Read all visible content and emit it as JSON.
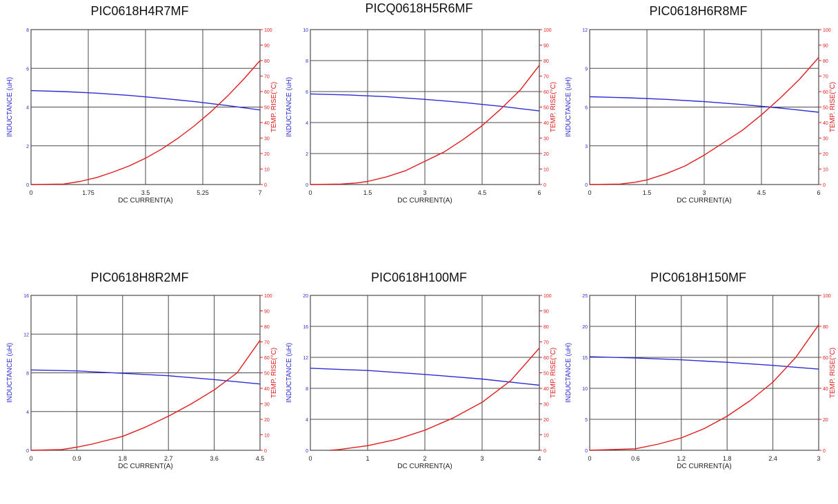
{
  "colors": {
    "inductance": "#2b2bd6",
    "temp_rise": "#e01b1b",
    "grid": "#4a4a4a",
    "tick_text": "#222222"
  },
  "chart_data": [
    {
      "type": "line",
      "title": "PIC0618H4R7MF",
      "xlabel": "DC CURRENT(A)",
      "ylabel_left": "INDUCTANCE (uH)",
      "ylabel_right": "TEMP. RISE(°C)",
      "x_ticks": [
        "0",
        "1.75",
        "3.5",
        "5.25",
        "7"
      ],
      "xlim": [
        0,
        7
      ],
      "left_ticks": [
        "0",
        "2",
        "4",
        "6",
        "8"
      ],
      "ylim_left": [
        0,
        8
      ],
      "right_ticks": [
        "0",
        "10",
        "20",
        "30",
        "40",
        "50",
        "60",
        "70",
        "80",
        "90",
        "100"
      ],
      "ylim_right": [
        0,
        100
      ],
      "grid": true,
      "series": [
        {
          "name": "INDUCTANCE (uH)",
          "axis": "left",
          "x": [
            0,
            1,
            2,
            3,
            4,
            5,
            6,
            7
          ],
          "y": [
            4.85,
            4.8,
            4.72,
            4.6,
            4.45,
            4.28,
            4.08,
            3.85
          ]
        },
        {
          "name": "TEMP. RISE(°C)",
          "axis": "right",
          "x": [
            0,
            1,
            1.5,
            2,
            2.5,
            3,
            3.5,
            4,
            4.5,
            5,
            5.5,
            6,
            6.5,
            7
          ],
          "y": [
            0,
            0.3,
            2,
            4.5,
            8,
            12,
            17,
            23,
            30,
            38,
            47,
            57,
            68,
            80
          ]
        }
      ]
    },
    {
      "type": "line",
      "title": "PICQ0618H5R6MF",
      "xlabel": "DC CURRENT(A)",
      "ylabel_left": "INDUCTANCE (uH)",
      "ylabel_right": "TEMP. RISE(°C)",
      "x_ticks": [
        "0",
        "1.5",
        "3",
        "4.5",
        "6"
      ],
      "xlim": [
        0,
        6
      ],
      "left_ticks": [
        "0",
        "2",
        "4",
        "6",
        "8",
        "10"
      ],
      "ylim_left": [
        0,
        10
      ],
      "right_ticks": [
        "0",
        "10",
        "20",
        "30",
        "40",
        "50",
        "60",
        "70",
        "80",
        "90",
        "100"
      ],
      "ylim_right": [
        0,
        100
      ],
      "grid": true,
      "series": [
        {
          "name": "INDUCTANCE (uH)",
          "axis": "left",
          "x": [
            0,
            1,
            2,
            3,
            4,
            5,
            6
          ],
          "y": [
            5.85,
            5.78,
            5.67,
            5.5,
            5.3,
            5.05,
            4.75
          ]
        },
        {
          "name": "TEMP. RISE(°C)",
          "axis": "right",
          "x": [
            0,
            0.8,
            1.2,
            1.5,
            2,
            2.5,
            3,
            3.5,
            4,
            4.5,
            5,
            5.5,
            6
          ],
          "y": [
            0,
            0.3,
            1,
            2,
            5,
            9,
            15,
            21,
            29,
            38,
            49,
            61,
            77
          ]
        }
      ]
    },
    {
      "type": "line",
      "title": "PIC0618H6R8MF",
      "xlabel": "DC CURRENT(A)",
      "ylabel_left": "INDUCTANCE (uH)",
      "ylabel_right": "TEMP. RISE(°C)",
      "x_ticks": [
        "0",
        "1.5",
        "3",
        "4.5",
        "6"
      ],
      "xlim": [
        0,
        6
      ],
      "left_ticks": [
        "0",
        "3",
        "6",
        "9",
        "12"
      ],
      "ylim_left": [
        0,
        12
      ],
      "right_ticks": [
        "0",
        "10",
        "20",
        "30",
        "40",
        "50",
        "60",
        "70",
        "80",
        "90",
        "100"
      ],
      "ylim_right": [
        0,
        100
      ],
      "grid": true,
      "series": [
        {
          "name": "INDUCTANCE (uH)",
          "axis": "left",
          "x": [
            0,
            1,
            2,
            3,
            4,
            5,
            6
          ],
          "y": [
            6.8,
            6.72,
            6.6,
            6.42,
            6.2,
            5.92,
            5.6
          ]
        },
        {
          "name": "TEMP. RISE(°C)",
          "axis": "right",
          "x": [
            0,
            0.8,
            1.2,
            1.5,
            2,
            2.5,
            3,
            3.5,
            4,
            4.5,
            5,
            5.5,
            6
          ],
          "y": [
            0,
            0.3,
            1.5,
            3,
            7,
            12,
            19,
            27,
            35,
            45,
            56,
            68,
            82
          ]
        }
      ]
    },
    {
      "type": "line",
      "title": "PIC0618H8R2MF",
      "xlabel": "DC CURRENT(A)",
      "ylabel_left": "INDUCTANCE (uH)",
      "ylabel_right": "TEMP. RISE(°C)",
      "x_ticks": [
        "0",
        "0.9",
        "1.8",
        "2.7",
        "3.6",
        "4.5"
      ],
      "xlim": [
        0,
        4.5
      ],
      "left_ticks": [
        "0",
        "4",
        "8",
        "12",
        "16"
      ],
      "ylim_left": [
        0,
        16
      ],
      "right_ticks": [
        "0",
        "10",
        "20",
        "30",
        "40",
        "50",
        "60",
        "70",
        "80",
        "90",
        "100"
      ],
      "ylim_right": [
        0,
        100
      ],
      "grid": true,
      "series": [
        {
          "name": "INDUCTANCE (uH)",
          "axis": "left",
          "x": [
            0,
            0.9,
            1.8,
            2.7,
            3.6,
            4.5
          ],
          "y": [
            8.3,
            8.2,
            7.95,
            7.7,
            7.3,
            6.85
          ]
        },
        {
          "name": "TEMP. RISE(°C)",
          "axis": "right",
          "x": [
            0,
            0.6,
            0.9,
            1.2,
            1.8,
            2.25,
            2.7,
            3.15,
            3.6,
            4.05,
            4.5
          ],
          "y": [
            0,
            0.5,
            2,
            4,
            9,
            15,
            22,
            30,
            39,
            50,
            71
          ]
        }
      ]
    },
    {
      "type": "line",
      "title": "PIC0618H100MF",
      "xlabel": "DC CURRENT(A)",
      "ylabel_left": "INDUCTANCE (uH)",
      "ylabel_right": "TEMP. RISE(°C)",
      "x_ticks": [
        "0",
        "1",
        "2",
        "3",
        "4"
      ],
      "xlim": [
        0,
        4
      ],
      "left_ticks": [
        "0",
        "4",
        "8",
        "12",
        "16",
        "20"
      ],
      "ylim_left": [
        0,
        20
      ],
      "right_ticks": [
        "0",
        "10",
        "20",
        "30",
        "40",
        "50",
        "60",
        "70",
        "80",
        "90",
        "100"
      ],
      "ylim_right": [
        0,
        100
      ],
      "grid": true,
      "series": [
        {
          "name": "INDUCTANCE (uH)",
          "axis": "left",
          "x": [
            0,
            1,
            2,
            3,
            4
          ],
          "y": [
            10.6,
            10.3,
            9.8,
            9.2,
            8.4
          ]
        },
        {
          "name": "TEMP. RISE(°C)",
          "axis": "right",
          "x": [
            0.35,
            0.5,
            1,
            1.5,
            2,
            2.5,
            3,
            3.5,
            4
          ],
          "y": [
            0,
            0.5,
            3,
            7,
            13,
            21,
            31,
            45,
            66
          ]
        }
      ]
    },
    {
      "type": "line",
      "title": "PIC0618H150MF",
      "xlabel": "DC CURRENT(A)",
      "ylabel_left": "INDUCTANCE (uH)",
      "ylabel_right": "TEMP. RISE(°C)",
      "x_ticks": [
        "0",
        "0.6",
        "1.2",
        "1.8",
        "2.4",
        "3"
      ],
      "xlim": [
        0,
        3
      ],
      "left_ticks": [
        "0",
        "5",
        "10",
        "15",
        "20",
        "25"
      ],
      "ylim_left": [
        0,
        25
      ],
      "right_ticks": [
        "0",
        "20",
        "40",
        "60",
        "80",
        "100"
      ],
      "ylim_right": [
        0,
        100
      ],
      "grid": true,
      "series": [
        {
          "name": "INDUCTANCE (uH)",
          "axis": "left",
          "x": [
            0,
            0.6,
            1.2,
            1.8,
            2.4,
            3
          ],
          "y": [
            15.1,
            14.9,
            14.6,
            14.2,
            13.7,
            13.1
          ]
        },
        {
          "name": "TEMP. RISE(°C)",
          "axis": "right",
          "x": [
            0,
            0.6,
            0.9,
            1.2,
            1.5,
            1.8,
            2.1,
            2.4,
            2.7,
            3
          ],
          "y": [
            0,
            1,
            4,
            8,
            14,
            22,
            32,
            44,
            60,
            81
          ]
        }
      ]
    }
  ]
}
